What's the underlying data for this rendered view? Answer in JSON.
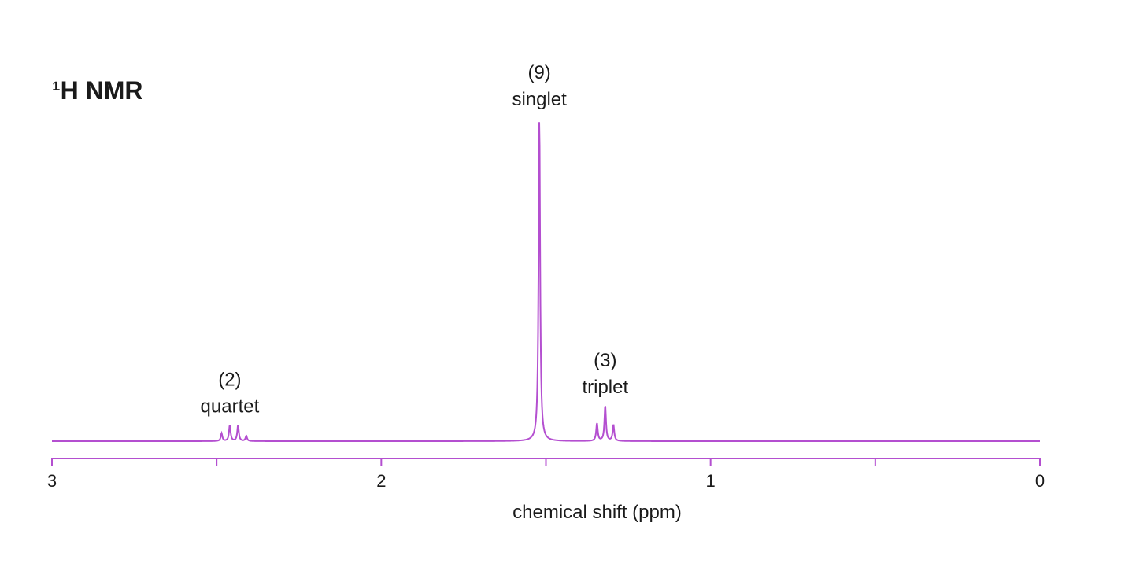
{
  "chart_data": {
    "type": "line",
    "title": "¹H NMR",
    "xlabel": "chemical shift (ppm)",
    "ylabel": "",
    "xlim": [
      3,
      0
    ],
    "x_reversed": true,
    "ylim": [
      0,
      1.0
    ],
    "grid": false,
    "color": "#b44fd0",
    "x_ticks": [
      {
        "value": 3,
        "label": "3"
      },
      {
        "value": 2.5,
        "label": ""
      },
      {
        "value": 2,
        "label": "2"
      },
      {
        "value": 1.5,
        "label": ""
      },
      {
        "value": 1,
        "label": "1"
      },
      {
        "value": 0.5,
        "label": ""
      },
      {
        "value": 0,
        "label": "0"
      }
    ],
    "peaks": [
      {
        "name": "quartet",
        "label_integration": "(2)",
        "label_multiplicity": "quartet",
        "shift": 2.46,
        "lines": [
          {
            "x": 2.485,
            "height": 0.024
          },
          {
            "x": 2.46,
            "height": 0.05
          },
          {
            "x": 2.435,
            "height": 0.05
          },
          {
            "x": 2.41,
            "height": 0.016
          }
        ]
      },
      {
        "name": "singlet",
        "label_integration": "(9)",
        "label_multiplicity": "singlet",
        "shift": 1.52,
        "lines": [
          {
            "x": 1.52,
            "height": 1.0
          }
        ]
      },
      {
        "name": "triplet",
        "label_integration": "(3)",
        "label_multiplicity": "triplet",
        "shift": 1.32,
        "lines": [
          {
            "x": 1.345,
            "height": 0.055
          },
          {
            "x": 1.32,
            "height": 0.11
          },
          {
            "x": 1.295,
            "height": 0.05
          }
        ]
      }
    ]
  }
}
